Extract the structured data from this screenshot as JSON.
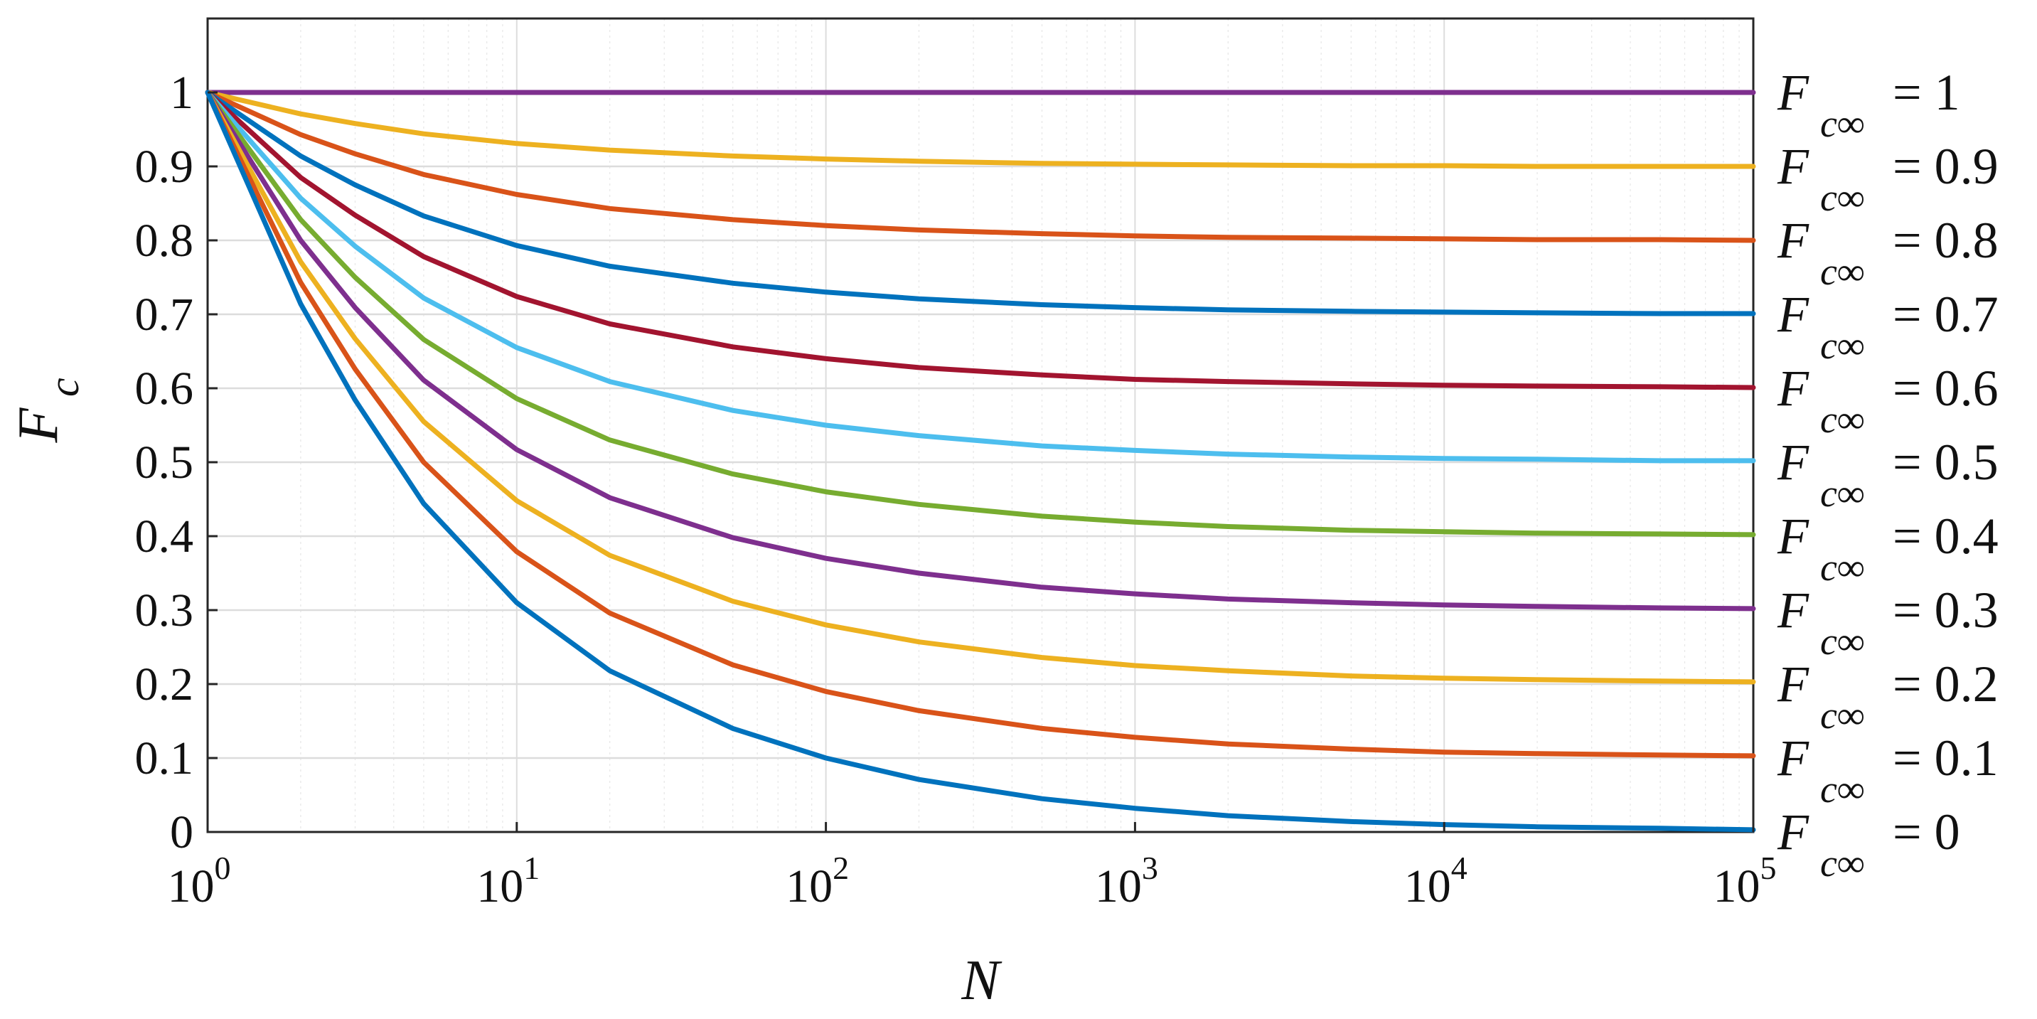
{
  "chart_data": {
    "type": "line",
    "title": "",
    "xlabel": "N",
    "ylabel": {
      "main": "F",
      "sub": "c"
    },
    "xscale": "log",
    "xlim": [
      1,
      100000
    ],
    "ylim": [
      0,
      1.1
    ],
    "grid": true,
    "legend_placement": "right",
    "x_ticks": [
      {
        "value": 1,
        "base": "10",
        "exp": "0"
      },
      {
        "value": 10,
        "base": "10",
        "exp": "1"
      },
      {
        "value": 100,
        "base": "10",
        "exp": "2"
      },
      {
        "value": 1000,
        "base": "10",
        "exp": "3"
      },
      {
        "value": 10000,
        "base": "10",
        "exp": "4"
      },
      {
        "value": 100000,
        "base": "10",
        "exp": "5"
      }
    ],
    "y_ticks": [
      {
        "value": 0,
        "label": "0"
      },
      {
        "value": 0.1,
        "label": "0.1"
      },
      {
        "value": 0.2,
        "label": "0.2"
      },
      {
        "value": 0.3,
        "label": "0.3"
      },
      {
        "value": 0.4,
        "label": "0.4"
      },
      {
        "value": 0.5,
        "label": "0.5"
      },
      {
        "value": 0.6,
        "label": "0.6"
      },
      {
        "value": 0.7,
        "label": "0.7"
      },
      {
        "value": 0.8,
        "label": "0.8"
      },
      {
        "value": 0.9,
        "label": "0.9"
      },
      {
        "value": 1,
        "label": "1"
      }
    ],
    "x": [
      1,
      2,
      3,
      5,
      10,
      20,
      50,
      100,
      200,
      500,
      1000,
      2000,
      5000,
      10000,
      20000,
      50000,
      100000
    ],
    "series": [
      {
        "name": "F_c∞ = 1",
        "asymptote": 1.0,
        "color": "#7E2F8E",
        "label_var": "F",
        "label_sub": "c∞",
        "label_val": "= 1",
        "values": [
          1,
          1,
          1,
          1,
          1,
          1,
          1,
          1,
          1,
          1,
          1,
          1,
          1,
          1,
          1,
          1,
          1
        ]
      },
      {
        "name": "F_c∞ = 0.9",
        "asymptote": 0.9,
        "color": "#EDB120",
        "label_var": "F",
        "label_sub": "c∞",
        "label_val": "= 0.9",
        "values": [
          1,
          0.971,
          0.958,
          0.944,
          0.931,
          0.922,
          0.914,
          0.91,
          0.907,
          0.904,
          0.903,
          0.902,
          0.901,
          0.901,
          0.9,
          0.9,
          0.9
        ]
      },
      {
        "name": "F_c∞ = 0.8",
        "asymptote": 0.8,
        "color": "#D95319",
        "label_var": "F",
        "label_sub": "c∞",
        "label_val": "= 0.8",
        "values": [
          1,
          0.943,
          0.917,
          0.889,
          0.862,
          0.843,
          0.828,
          0.82,
          0.814,
          0.809,
          0.806,
          0.804,
          0.803,
          0.802,
          0.801,
          0.801,
          0.8
        ]
      },
      {
        "name": "F_c∞ = 0.7",
        "asymptote": 0.7,
        "color": "#0072BD",
        "label_var": "F",
        "label_sub": "c∞",
        "label_val": "= 0.7",
        "values": [
          1,
          0.914,
          0.875,
          0.833,
          0.793,
          0.765,
          0.742,
          0.73,
          0.721,
          0.713,
          0.709,
          0.706,
          0.704,
          0.703,
          0.702,
          0.701,
          0.701
        ]
      },
      {
        "name": "F_c∞ = 0.6",
        "asymptote": 0.6,
        "color": "#A2142F",
        "label_var": "F",
        "label_sub": "c∞",
        "label_val": "= 0.6",
        "values": [
          1,
          0.885,
          0.834,
          0.778,
          0.724,
          0.687,
          0.656,
          0.64,
          0.628,
          0.618,
          0.612,
          0.609,
          0.606,
          0.604,
          0.603,
          0.602,
          0.601
        ]
      },
      {
        "name": "F_c∞ = 0.5",
        "asymptote": 0.5,
        "color": "#4DBEEE",
        "label_var": "F",
        "label_sub": "c∞",
        "label_val": "= 0.5",
        "values": [
          1,
          0.857,
          0.792,
          0.722,
          0.655,
          0.609,
          0.57,
          0.55,
          0.536,
          0.522,
          0.516,
          0.511,
          0.507,
          0.505,
          0.504,
          0.502,
          0.502
        ]
      },
      {
        "name": "F_c∞ = 0.4",
        "asymptote": 0.4,
        "color": "#77AC30",
        "label_var": "F",
        "label_sub": "c∞",
        "label_val": "= 0.4",
        "values": [
          1,
          0.828,
          0.75,
          0.666,
          0.586,
          0.53,
          0.484,
          0.46,
          0.443,
          0.427,
          0.419,
          0.413,
          0.408,
          0.406,
          0.404,
          0.403,
          0.402
        ]
      },
      {
        "name": "F_c∞ = 0.3",
        "asymptote": 0.3,
        "color": "#7E2F8E",
        "label_var": "F",
        "label_sub": "c∞",
        "label_val": "= 0.3",
        "values": [
          1,
          0.8,
          0.709,
          0.611,
          0.517,
          0.452,
          0.398,
          0.37,
          0.35,
          0.331,
          0.322,
          0.315,
          0.31,
          0.307,
          0.305,
          0.303,
          0.302
        ]
      },
      {
        "name": "F_c∞ = 0.2",
        "asymptote": 0.2,
        "color": "#EDB120",
        "label_var": "F",
        "label_sub": "c∞",
        "label_val": "= 0.2",
        "values": [
          1,
          0.771,
          0.667,
          0.555,
          0.448,
          0.374,
          0.312,
          0.28,
          0.257,
          0.236,
          0.225,
          0.218,
          0.211,
          0.208,
          0.206,
          0.204,
          0.203
        ]
      },
      {
        "name": "F_c∞ = 0.1",
        "asymptote": 0.1,
        "color": "#D95319",
        "label_var": "F",
        "label_sub": "c∞",
        "label_val": "= 0.1",
        "values": [
          1,
          0.743,
          0.626,
          0.5,
          0.379,
          0.296,
          0.226,
          0.19,
          0.164,
          0.14,
          0.128,
          0.119,
          0.112,
          0.108,
          0.106,
          0.104,
          0.103
        ]
      },
      {
        "name": "F_c∞ = 0",
        "asymptote": 0.0,
        "color": "#0072BD",
        "label_var": "F",
        "label_sub": "c∞",
        "label_val": "= 0",
        "values": [
          1,
          0.714,
          0.584,
          0.444,
          0.31,
          0.218,
          0.14,
          0.1,
          0.071,
          0.045,
          0.032,
          0.022,
          0.014,
          0.01,
          0.007,
          0.005,
          0.003
        ]
      }
    ]
  }
}
